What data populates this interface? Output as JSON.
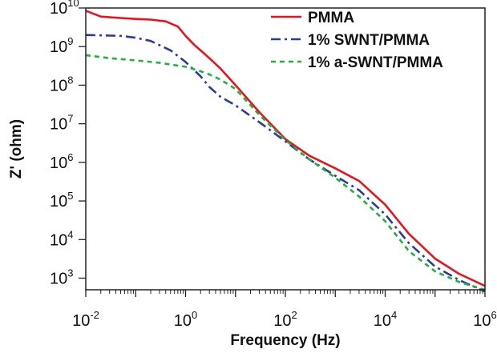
{
  "chart_data": {
    "type": "line",
    "xlabel": "Frequency (Hz)",
    "ylabel": "Z' (ohm)",
    "xscale": "log",
    "yscale": "log",
    "xlim": [
      0.01,
      1000000
    ],
    "ylim": [
      500,
      10000000000
    ],
    "x_ticks": [
      {
        "value": 0.01,
        "base": "10",
        "exp": "-2"
      },
      {
        "value": 1,
        "base": "10",
        "exp": "0"
      },
      {
        "value": 100,
        "base": "10",
        "exp": "2"
      },
      {
        "value": 10000,
        "base": "10",
        "exp": "4"
      },
      {
        "value": 1000000,
        "base": "10",
        "exp": "6"
      }
    ],
    "y_ticks": [
      {
        "value": 1000,
        "base": "10",
        "exp": "3"
      },
      {
        "value": 10000,
        "base": "10",
        "exp": "4"
      },
      {
        "value": 100000,
        "base": "10",
        "exp": "5"
      },
      {
        "value": 1000000,
        "base": "10",
        "exp": "6"
      },
      {
        "value": 10000000,
        "base": "10",
        "exp": "7"
      },
      {
        "value": 100000000,
        "base": "10",
        "exp": "8"
      },
      {
        "value": 1000000000,
        "base": "10",
        "exp": "9"
      },
      {
        "value": 10000000000,
        "base": "10",
        "exp": "10"
      }
    ],
    "legend_position": "top-right",
    "series": [
      {
        "name": "PMMA",
        "color": "#e8141c",
        "style": "solid",
        "x": [
          0.01,
          0.02,
          0.05,
          0.1,
          0.2,
          0.4,
          0.7,
          1,
          1.5,
          2,
          3,
          5,
          10,
          30,
          100,
          300,
          1000,
          3000,
          10000,
          30000,
          100000,
          300000,
          1000000
        ],
        "y": [
          8500000000,
          6000000000,
          5500000000,
          5200000000,
          5000000000,
          4500000000,
          3300000000,
          1900000000,
          1100000000,
          800000000,
          500000000,
          270000000,
          100000000,
          20000000,
          4000000,
          1500000,
          700000,
          330000,
          80000,
          14000,
          3200,
          1300,
          630
        ]
      },
      {
        "name": "1% SWNT/PMMA",
        "color": "#2b3a9c",
        "style": "dashdot",
        "x": [
          0.01,
          0.05,
          0.1,
          0.2,
          0.5,
          1,
          2,
          3,
          5,
          10,
          30,
          100,
          300,
          1000,
          3000,
          10000,
          30000,
          100000,
          300000,
          1000000
        ],
        "y": [
          2000000000,
          1900000000,
          1700000000,
          1400000000,
          800000000,
          400000000,
          170000000,
          90000000,
          50000000,
          30000000,
          11000000,
          3500000,
          1200000,
          450000,
          190000,
          45000,
          8000,
          2000,
          900,
          450
        ]
      },
      {
        "name": "1% a-SWNT/PMMA",
        "color": "#1fb23b",
        "style": "dashed",
        "x": [
          0.01,
          0.03,
          0.1,
          0.3,
          1,
          2,
          3,
          5,
          10,
          30,
          100,
          300,
          1000,
          3000,
          10000,
          30000,
          100000,
          300000,
          1000000
        ],
        "y": [
          600000000,
          500000000,
          440000000,
          380000000,
          300000000,
          230000000,
          190000000,
          140000000,
          80000000,
          17000000,
          3800000,
          1200000,
          400000,
          130000,
          30000,
          5000,
          1500,
          800,
          500
        ]
      }
    ]
  }
}
